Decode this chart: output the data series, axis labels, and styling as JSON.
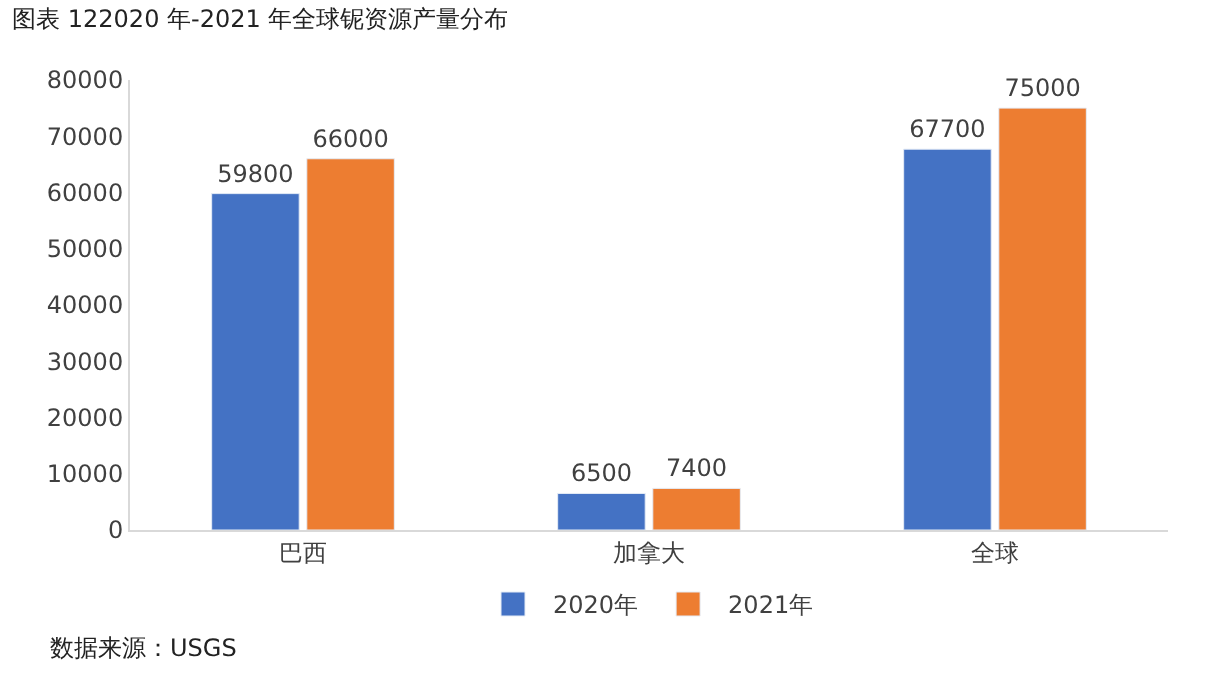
{
  "chart_data": {
    "type": "bar",
    "title": "图表 122020 年-2021 年全球铌资源产量分布",
    "categories": [
      "巴西",
      "加拿大",
      "全球"
    ],
    "series": [
      {
        "name": "2020年",
        "color": "#4472c4",
        "values": [
          59800,
          6500,
          67700
        ]
      },
      {
        "name": "2021年",
        "color": "#ed7d31",
        "values": [
          66000,
          7400,
          75000
        ]
      }
    ],
    "ylim": [
      0,
      80000
    ],
    "yticks": [
      0,
      10000,
      20000,
      30000,
      40000,
      50000,
      60000,
      70000,
      80000
    ],
    "grid": false,
    "legend": "bottom",
    "data_labels": true,
    "annotations": [
      "数据来源：USGS"
    ]
  }
}
